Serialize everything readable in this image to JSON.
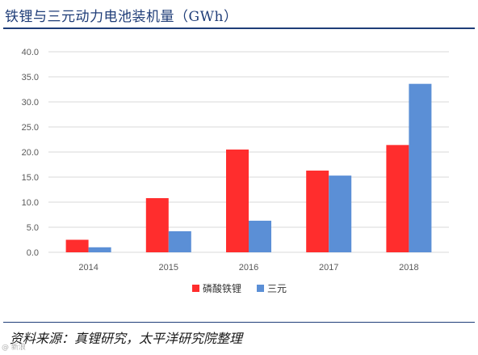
{
  "page": {
    "title": "铁锂与三元动力电池装机量（GWh）",
    "source": "资料来源：真锂研究，太平洋研究院整理",
    "watermark": "@ 新浪"
  },
  "colors": {
    "series_lfp": "#ff2d2d",
    "series_ncm": "#5b8fd6",
    "title": "#1f3d78",
    "grid": "#d9d9d9",
    "axis_text": "#595959"
  },
  "chart_data": {
    "type": "bar",
    "categories": [
      "2014",
      "2015",
      "2016",
      "2017",
      "2018"
    ],
    "series": [
      {
        "name": "磷酸铁锂",
        "values": [
          2.5,
          10.8,
          20.5,
          16.3,
          21.4
        ]
      },
      {
        "name": "三元",
        "values": [
          1.0,
          4.2,
          6.3,
          15.3,
          33.6
        ]
      }
    ],
    "ylim": [
      0,
      40
    ],
    "yticks": [
      "0.0",
      "5.0",
      "10.0",
      "15.0",
      "20.0",
      "25.0",
      "30.0",
      "35.0",
      "40.0"
    ],
    "grid": true,
    "legend": "bottom"
  }
}
